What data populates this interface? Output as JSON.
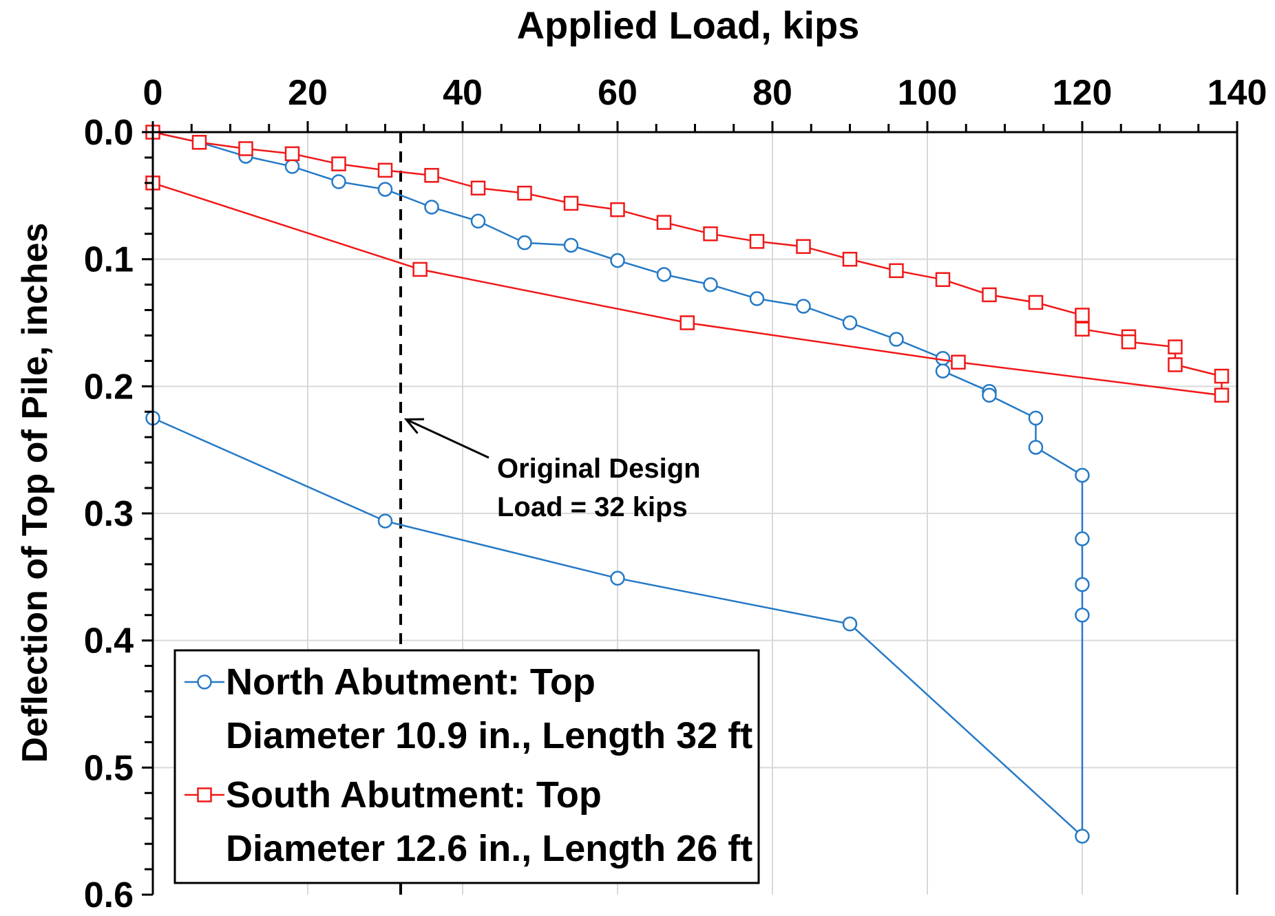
{
  "chart_data": {
    "type": "line",
    "title": "",
    "xlabel": "Applied Load, kips",
    "ylabel": "Deflection of Top of Pile, inches",
    "xlim": [
      0,
      140
    ],
    "ylim": [
      0.6,
      0.0
    ],
    "x_axis_position": "top",
    "y_axis_inverted": true,
    "grid": true,
    "xticks": [
      "0",
      "20",
      "40",
      "60",
      "80",
      "100",
      "120",
      "140"
    ],
    "yticks": [
      "0.0",
      "0.1",
      "0.2",
      "0.3",
      "0.4",
      "0.5",
      "0.6"
    ],
    "legend_position": "bottom-left",
    "series": [
      {
        "name": "North Abutment: Top Diameter 10.9 in., Length 32 ft",
        "legend_lines": [
          "North Abutment: Top",
          "Diameter 10.9 in., Length 32 ft"
        ],
        "color": "#2479c6",
        "marker": "circle",
        "points": [
          [
            0,
            0.0
          ],
          [
            6,
            0.008
          ],
          [
            12,
            0.019
          ],
          [
            18,
            0.027
          ],
          [
            24,
            0.039
          ],
          [
            30,
            0.045
          ],
          [
            36,
            0.059
          ],
          [
            42,
            0.07
          ],
          [
            48,
            0.087
          ],
          [
            54,
            0.089
          ],
          [
            60,
            0.101
          ],
          [
            66,
            0.112
          ],
          [
            72,
            0.12
          ],
          [
            78,
            0.131
          ],
          [
            84,
            0.137
          ],
          [
            90,
            0.15
          ],
          [
            96,
            0.163
          ],
          [
            102,
            0.178
          ],
          [
            102,
            0.188
          ],
          [
            108,
            0.204
          ],
          [
            108,
            0.207
          ],
          [
            114,
            0.225
          ],
          [
            114,
            0.248
          ],
          [
            120,
            0.27
          ],
          [
            120,
            0.32
          ],
          [
            120,
            0.356
          ],
          [
            120,
            0.38
          ],
          [
            120,
            0.554
          ],
          [
            90,
            0.387
          ],
          [
            60,
            0.351
          ],
          [
            30,
            0.306
          ],
          [
            0,
            0.225
          ]
        ]
      },
      {
        "name": "South Abutment: Top Diameter 12.6 in., Length 26 ft",
        "legend_lines": [
          "South Abutment: Top",
          "Diameter 12.6 in., Length 26 ft"
        ],
        "color": "#f01818",
        "marker": "square",
        "points": [
          [
            0,
            0.0
          ],
          [
            6,
            0.008
          ],
          [
            12,
            0.013
          ],
          [
            18,
            0.017
          ],
          [
            24,
            0.025
          ],
          [
            30,
            0.03
          ],
          [
            36,
            0.034
          ],
          [
            42,
            0.044
          ],
          [
            48,
            0.048
          ],
          [
            54,
            0.056
          ],
          [
            60,
            0.061
          ],
          [
            66,
            0.071
          ],
          [
            72,
            0.08
          ],
          [
            78,
            0.086
          ],
          [
            84,
            0.09
          ],
          [
            90,
            0.1
          ],
          [
            96,
            0.109
          ],
          [
            102,
            0.116
          ],
          [
            108,
            0.128
          ],
          [
            114,
            0.134
          ],
          [
            120,
            0.144
          ],
          [
            120,
            0.155
          ],
          [
            126,
            0.161
          ],
          [
            126,
            0.165
          ],
          [
            132,
            0.169
          ],
          [
            132,
            0.183
          ],
          [
            138,
            0.192
          ],
          [
            138,
            0.207
          ],
          [
            104,
            0.181
          ],
          [
            69,
            0.15
          ],
          [
            34.5,
            0.108
          ],
          [
            0,
            0.04
          ]
        ]
      }
    ],
    "reference_line": {
      "x": 32,
      "style": "dashed",
      "color": "#000000"
    },
    "annotation": {
      "lines": [
        "Original Design",
        "Load = 32 kips"
      ],
      "arrow_target": [
        32,
        0.225
      ]
    }
  }
}
